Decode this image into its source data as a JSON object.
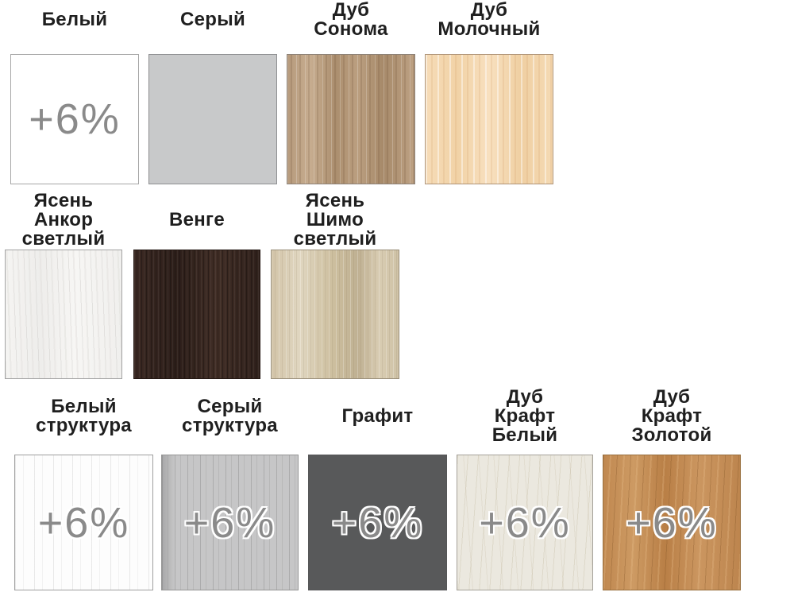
{
  "panel": {
    "description": "Furniture material color options with surcharge badges",
    "surcharge_note": "+6% price surcharge shown on selected materials"
  },
  "colors": {
    "background": "#ffffff",
    "label_text": "#1f1f1f",
    "surcharge_text": "#8a8a8a",
    "surcharge_outline": "#ffffff",
    "gray_swatch": "#c8c9ca",
    "graphite_swatch": "#58595a",
    "wenge_swatch": "#33231e",
    "oak_sonoma_swatch": "#b59878",
    "milk_oak_swatch": "#f4d8b0",
    "ash_shimo_swatch": "#d7cab0",
    "oak_craft_gold_swatch": "#c48e57"
  },
  "rows": [
    {
      "items": [
        {
          "label": "Белый",
          "material": "white",
          "surcharge": "+6%"
        },
        {
          "label": "Серый",
          "material": "gray"
        },
        {
          "label": "Дуб\nСонома",
          "material": "oak-sonoma"
        },
        {
          "label": "Дуб\nМолочный",
          "material": "milk-oak"
        }
      ]
    },
    {
      "items": [
        {
          "label": "Ясень\nАнкор\nсветлый",
          "material": "ash-ankor-light"
        },
        {
          "label": "Венге",
          "material": "wenge"
        },
        {
          "label": "Ясень\nШимо\nсветлый",
          "material": "ash-shimo-light"
        }
      ]
    },
    {
      "items": [
        {
          "label": "Белый\nструктура",
          "material": "white-structure",
          "surcharge": "+6%"
        },
        {
          "label": "Серый\nструктура",
          "material": "gray-structure",
          "surcharge": "+6%"
        },
        {
          "label": "Графит",
          "material": "graphite",
          "surcharge": "+6%"
        },
        {
          "label": "Дуб\nКрафт\nБелый",
          "material": "oak-craft-white",
          "surcharge": "+6%"
        },
        {
          "label": "Дуб\nКрафт\nЗолотой",
          "material": "oak-craft-gold",
          "surcharge": "+6%"
        }
      ]
    }
  ]
}
